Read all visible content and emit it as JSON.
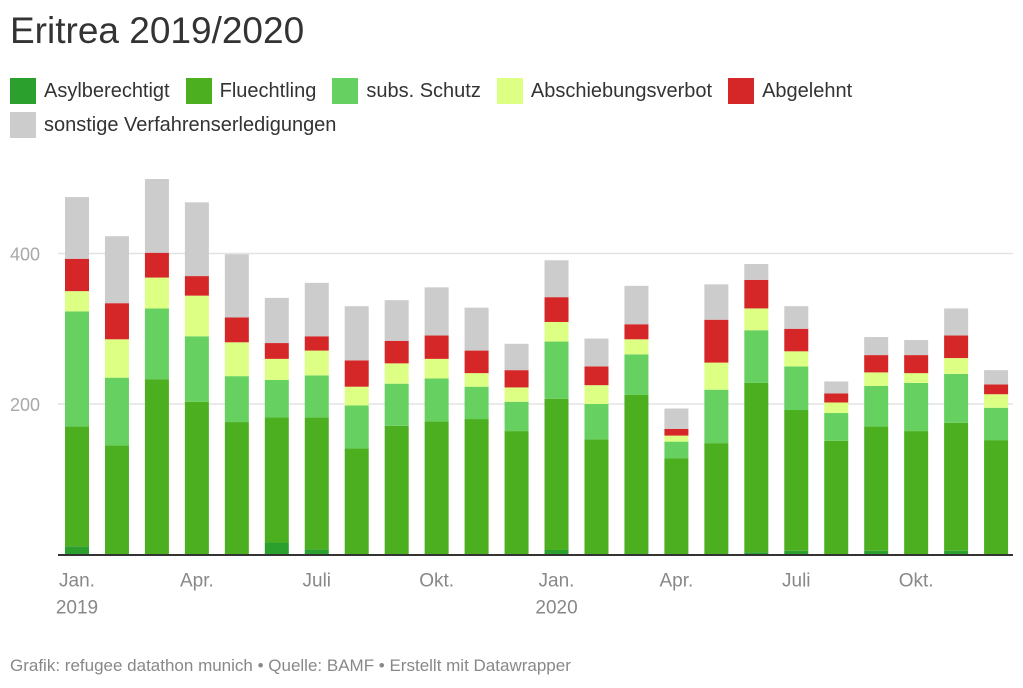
{
  "chart_data": {
    "type": "bar",
    "stacked": true,
    "title": "Eritrea 2019/2020",
    "xlabel": "",
    "ylabel": "",
    "ylim": [
      0,
      500
    ],
    "yticks": [
      200,
      400
    ],
    "grid": true,
    "legend_position": "top-left",
    "categories": [
      "2019-01",
      "2019-02",
      "2019-03",
      "2019-04",
      "2019-05",
      "2019-06",
      "2019-07",
      "2019-08",
      "2019-09",
      "2019-10",
      "2019-11",
      "2019-12",
      "2020-01",
      "2020-02",
      "2020-03",
      "2020-04",
      "2020-05",
      "2020-06",
      "2020-07",
      "2020-08",
      "2020-09",
      "2020-10",
      "2020-11",
      "2020-12"
    ],
    "x_tick_labels": [
      {
        "index": 0,
        "label": "Jan.",
        "sublabel": "2019"
      },
      {
        "index": 3,
        "label": "Apr.",
        "sublabel": ""
      },
      {
        "index": 6,
        "label": "Juli",
        "sublabel": ""
      },
      {
        "index": 9,
        "label": "Okt.",
        "sublabel": ""
      },
      {
        "index": 12,
        "label": "Jan.",
        "sublabel": "2020"
      },
      {
        "index": 15,
        "label": "Apr.",
        "sublabel": ""
      },
      {
        "index": 18,
        "label": "Juli",
        "sublabel": ""
      },
      {
        "index": 21,
        "label": "Okt.",
        "sublabel": ""
      }
    ],
    "series": [
      {
        "name": "Asylberechtigt",
        "color": "#2ca02c",
        "values": [
          11,
          0,
          0,
          0,
          0,
          16,
          7,
          0,
          0,
          0,
          0,
          0,
          6,
          0,
          0,
          0,
          0,
          3,
          5,
          0,
          5,
          0,
          5,
          0
        ]
      },
      {
        "name": "Fluechtling",
        "color": "#4caf1f",
        "values": [
          159,
          145,
          233,
          203,
          176,
          166,
          175,
          141,
          171,
          177,
          180,
          164,
          201,
          153,
          212,
          128,
          148,
          225,
          187,
          151,
          165,
          164,
          170,
          152
        ]
      },
      {
        "name": "subs. Schutz",
        "color": "#66d160",
        "values": [
          153,
          90,
          94,
          87,
          61,
          50,
          56,
          57,
          56,
          57,
          43,
          39,
          76,
          47,
          54,
          22,
          71,
          70,
          58,
          37,
          54,
          64,
          65,
          43
        ]
      },
      {
        "name": "Abschiebungsverbot",
        "color": "#ddff84",
        "values": [
          27,
          51,
          41,
          54,
          45,
          28,
          33,
          25,
          27,
          26,
          18,
          19,
          26,
          25,
          20,
          8,
          36,
          29,
          20,
          14,
          18,
          13,
          21,
          18
        ]
      },
      {
        "name": "Abgelehnt",
        "color": "#d62728",
        "values": [
          43,
          48,
          33,
          26,
          33,
          21,
          19,
          35,
          30,
          31,
          30,
          23,
          33,
          25,
          20,
          9,
          57,
          38,
          30,
          12,
          23,
          24,
          30,
          13
        ]
      },
      {
        "name": "sonstige Verfahrenserledigungen",
        "color": "#cccccc",
        "values": [
          82,
          89,
          98,
          98,
          84,
          60,
          71,
          72,
          54,
          64,
          57,
          35,
          49,
          37,
          51,
          27,
          47,
          21,
          30,
          16,
          24,
          20,
          36,
          19
        ]
      }
    ]
  },
  "footer": {
    "text": "Grafik: refugee datathon munich • Quelle: BAMF • Erstellt mit Datawrapper"
  }
}
